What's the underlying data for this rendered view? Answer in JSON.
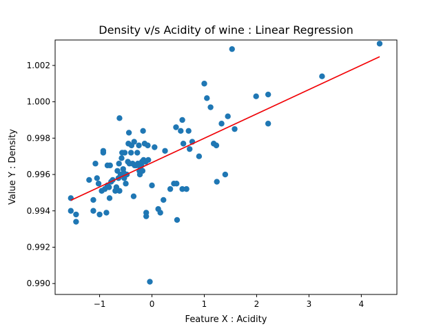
{
  "chart_data": {
    "type": "scatter",
    "title": "Density v/s Acidity of wine : Linear Regression",
    "xlabel": "Feature X : Acidity",
    "ylabel": "Value Y : Density",
    "xlim": [
      -1.85,
      4.68
    ],
    "ylim": [
      0.9894,
      1.0034
    ],
    "x_ticks": [
      -1,
      0,
      1,
      2,
      3,
      4
    ],
    "x_tick_labels": [
      "−1",
      "0",
      "1",
      "2",
      "3",
      "4"
    ],
    "y_ticks": [
      0.99,
      0.992,
      0.994,
      0.996,
      0.998,
      1.0,
      1.002
    ],
    "y_tick_labels": [
      "0.990",
      "0.992",
      "0.994",
      "0.996",
      "0.998",
      "1.000",
      "1.002"
    ],
    "grid": false,
    "colors": {
      "points": "#1f77b4",
      "regression": "#ff0000",
      "line_overlay": "#1f77b4"
    },
    "regression_line": {
      "x": [
        -1.55,
        4.35
      ],
      "y": [
        0.99458,
        1.00248
      ]
    },
    "points": [
      [
        -1.55,
        0.9947
      ],
      [
        -1.55,
        0.994
      ],
      [
        -1.45,
        0.9938
      ],
      [
        -1.45,
        0.9934
      ],
      [
        -1.2,
        0.9957
      ],
      [
        -1.12,
        0.9946
      ],
      [
        -1.12,
        0.994
      ],
      [
        -1.08,
        0.9966
      ],
      [
        -1.05,
        0.9958
      ],
      [
        -1.02,
        0.9955
      ],
      [
        -1.0,
        0.9938
      ],
      [
        -0.96,
        0.9951
      ],
      [
        -0.93,
        0.9972
      ],
      [
        -0.93,
        0.9973
      ],
      [
        -0.9,
        0.9952
      ],
      [
        -0.87,
        0.9939
      ],
      [
        -0.85,
        0.9954
      ],
      [
        -0.85,
        0.9965
      ],
      [
        -0.82,
        0.9953
      ],
      [
        -0.81,
        0.9947
      ],
      [
        -0.8,
        0.9965
      ],
      [
        -0.78,
        0.9956
      ],
      [
        -0.75,
        0.9957
      ],
      [
        -0.7,
        0.9951
      ],
      [
        -0.68,
        0.9953
      ],
      [
        -0.66,
        0.9962
      ],
      [
        -0.64,
        0.9958
      ],
      [
        -0.63,
        0.9966
      ],
      [
        -0.62,
        0.9951
      ],
      [
        -0.62,
        0.9991
      ],
      [
        -0.6,
        0.996
      ],
      [
        -0.58,
        0.9969
      ],
      [
        -0.57,
        0.9972
      ],
      [
        -0.55,
        0.9963
      ],
      [
        -0.54,
        0.9961
      ],
      [
        -0.53,
        0.9958
      ],
      [
        -0.52,
        0.9972
      ],
      [
        -0.5,
        0.9955
      ],
      [
        -0.48,
        0.996
      ],
      [
        -0.46,
        0.9967
      ],
      [
        -0.45,
        0.9977
      ],
      [
        -0.44,
        0.9983
      ],
      [
        -0.43,
        0.9966
      ],
      [
        -0.4,
        0.9972
      ],
      [
        -0.39,
        0.9976
      ],
      [
        -0.37,
        0.9966
      ],
      [
        -0.35,
        0.9948
      ],
      [
        -0.34,
        0.9978
      ],
      [
        -0.33,
        0.9965
      ],
      [
        -0.3,
        0.9965
      ],
      [
        -0.28,
        0.9972
      ],
      [
        -0.27,
        0.9966
      ],
      [
        -0.25,
        0.9976
      ],
      [
        -0.24,
        0.9962
      ],
      [
        -0.23,
        0.996
      ],
      [
        -0.22,
        0.9963
      ],
      [
        -0.2,
        0.9965
      ],
      [
        -0.19,
        0.9967
      ],
      [
        -0.18,
        0.9962
      ],
      [
        -0.17,
        0.9984
      ],
      [
        -0.16,
        0.9968
      ],
      [
        -0.14,
        0.9977
      ],
      [
        -0.12,
        0.9967
      ],
      [
        -0.11,
        0.9939
      ],
      [
        -0.11,
        0.9937
      ],
      [
        -0.08,
        0.9976
      ],
      [
        -0.07,
        0.9968
      ],
      [
        -0.04,
        0.9901
      ],
      [
        0.0,
        0.9954
      ],
      [
        0.05,
        0.9975
      ],
      [
        0.12,
        0.9941
      ],
      [
        0.16,
        0.9939
      ],
      [
        0.22,
        0.9946
      ],
      [
        0.25,
        0.9973
      ],
      [
        0.35,
        0.9952
      ],
      [
        0.42,
        0.9955
      ],
      [
        0.46,
        0.9986
      ],
      [
        0.47,
        0.9955
      ],
      [
        0.48,
        0.9935
      ],
      [
        0.55,
        0.9984
      ],
      [
        0.58,
        0.999
      ],
      [
        0.58,
        0.9952
      ],
      [
        0.6,
        0.9977
      ],
      [
        0.66,
        0.9952
      ],
      [
        0.7,
        0.9984
      ],
      [
        0.72,
        0.9974
      ],
      [
        0.77,
        0.9978
      ],
      [
        0.9,
        0.997
      ],
      [
        1.0,
        1.001
      ],
      [
        1.05,
        1.0002
      ],
      [
        1.12,
        0.9997
      ],
      [
        1.18,
        0.9977
      ],
      [
        1.23,
        0.9976
      ],
      [
        1.24,
        0.9956
      ],
      [
        1.33,
        0.9988
      ],
      [
        1.4,
        0.996
      ],
      [
        1.45,
        0.9992
      ],
      [
        1.53,
        1.0029
      ],
      [
        1.58,
        0.9985
      ],
      [
        1.99,
        1.0003
      ],
      [
        2.22,
        1.0004
      ],
      [
        2.22,
        0.9988
      ],
      [
        3.25,
        1.0014
      ],
      [
        4.35,
        1.0032
      ]
    ]
  }
}
